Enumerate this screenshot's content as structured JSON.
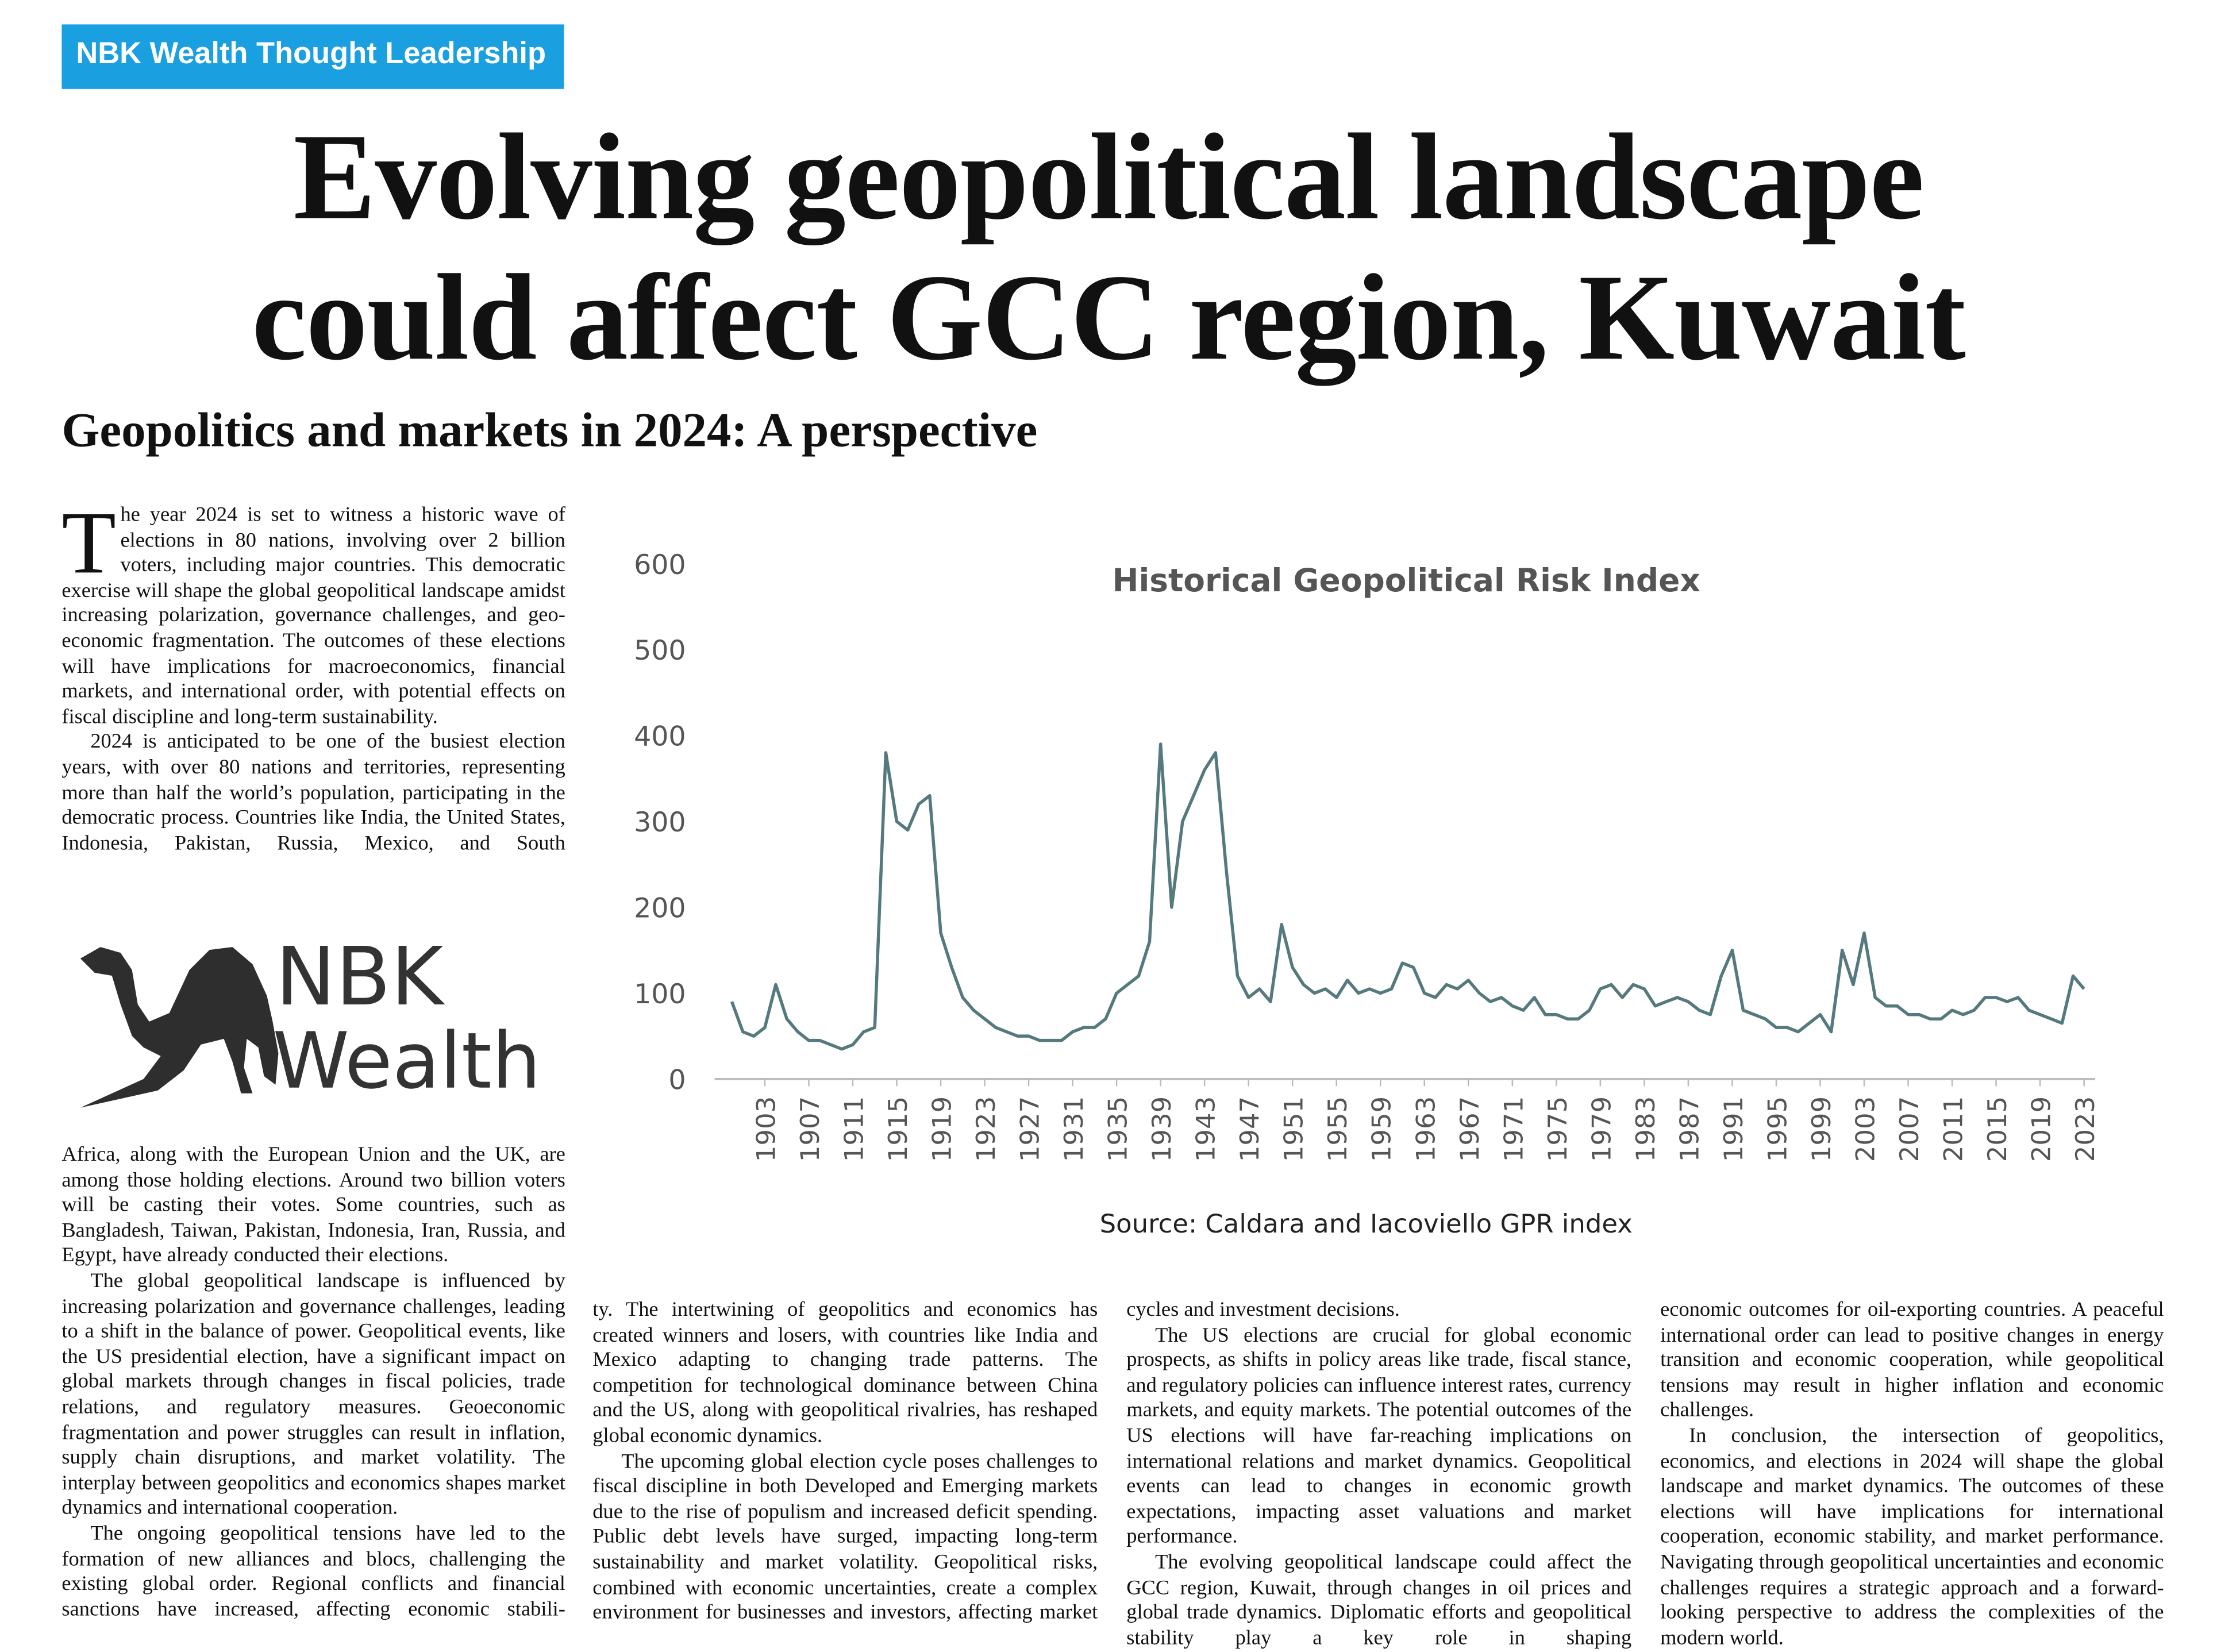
{
  "header": {
    "tag": "NBK Wealth Thought Leadership",
    "title_lines": [
      "Evolving geopolitical landscape",
      "could affect GCC region, Kuwait"
    ],
    "subtitle": "Geopolitics and markets in 2024: A perspective"
  },
  "logo": {
    "line1": "NBK",
    "line2": "Wealth"
  },
  "chart_data": {
    "type": "line",
    "title": "Historical Geopolitical Risk Index",
    "source": "Source: Caldara and Iacoviello GPR index",
    "x": [
      1900,
      1901,
      1902,
      1903,
      1904,
      1905,
      1906,
      1907,
      1908,
      1909,
      1910,
      1911,
      1912,
      1913,
      1914,
      1915,
      1916,
      1917,
      1918,
      1919,
      1920,
      1921,
      1922,
      1923,
      1924,
      1925,
      1926,
      1927,
      1928,
      1929,
      1930,
      1931,
      1932,
      1933,
      1934,
      1935,
      1936,
      1937,
      1938,
      1939,
      1940,
      1941,
      1942,
      1943,
      1944,
      1945,
      1946,
      1947,
      1948,
      1949,
      1950,
      1951,
      1952,
      1953,
      1954,
      1955,
      1956,
      1957,
      1958,
      1959,
      1960,
      1961,
      1962,
      1963,
      1964,
      1965,
      1966,
      1967,
      1968,
      1969,
      1970,
      1971,
      1972,
      1973,
      1974,
      1975,
      1976,
      1977,
      1978,
      1979,
      1980,
      1981,
      1982,
      1983,
      1984,
      1985,
      1986,
      1987,
      1988,
      1989,
      1990,
      1991,
      1992,
      1993,
      1994,
      1995,
      1996,
      1997,
      1998,
      1999,
      2000,
      2001,
      2002,
      2003,
      2004,
      2005,
      2006,
      2007,
      2008,
      2009,
      2010,
      2011,
      2012,
      2013,
      2014,
      2015,
      2016,
      2017,
      2018,
      2019,
      2020,
      2021,
      2022,
      2023
    ],
    "values": [
      90,
      55,
      50,
      60,
      110,
      70,
      55,
      45,
      45,
      40,
      35,
      40,
      55,
      60,
      380,
      300,
      290,
      320,
      330,
      170,
      130,
      95,
      80,
      70,
      60,
      55,
      50,
      50,
      45,
      45,
      45,
      55,
      60,
      60,
      70,
      100,
      110,
      120,
      160,
      390,
      200,
      300,
      330,
      360,
      380,
      240,
      120,
      95,
      105,
      90,
      180,
      130,
      110,
      100,
      105,
      95,
      115,
      100,
      105,
      100,
      105,
      135,
      130,
      100,
      95,
      110,
      105,
      115,
      100,
      90,
      95,
      85,
      80,
      95,
      75,
      75,
      70,
      70,
      80,
      105,
      110,
      95,
      110,
      105,
      85,
      90,
      95,
      90,
      80,
      75,
      120,
      150,
      80,
      75,
      70,
      60,
      60,
      55,
      65,
      75,
      55,
      150,
      110,
      170,
      95,
      85,
      85,
      75,
      75,
      70,
      70,
      80,
      75,
      80,
      95,
      95,
      90,
      95,
      80,
      75,
      70,
      65,
      120,
      105
    ],
    "color": "#557a7e",
    "xlim": [
      1900,
      2024
    ],
    "xticks": [
      1903,
      1907,
      1911,
      1915,
      1919,
      1923,
      1927,
      1931,
      1935,
      1939,
      1943,
      1947,
      1951,
      1955,
      1959,
      1963,
      1967,
      1971,
      1975,
      1979,
      1983,
      1987,
      1991,
      1995,
      1999,
      2003,
      2007,
      2011,
      2015,
      2019,
      2023
    ],
    "ylim": [
      0,
      600
    ],
    "yticks": [
      0,
      100,
      200,
      300,
      400,
      500,
      600
    ],
    "grid": false
  },
  "article": {
    "drop_cap": "T",
    "columns": [
      {
        "blocks": [
          [
            "he year 2024 is set to witness a historic wave of elections in 80 nations, involving over 2 billion voters, including major countries. This democratic exercise will shape the global geopolitical landscape amidst increasing polarization, governance challenges, and geo-economic fragmentation. The outcomes of these elections will have implications for macroeconomics, financial markets, and international order, with potential effects on fiscal discipline and long-term sustainability.",
            "2024 is anticipated to be one of the busiest election years, with over 80 nations and territories, representing more than half the world’s population, participating in the democratic process. Countries like India, the United States, Indonesia, Pakistan, Russia, Mexico, and South"
          ],
          [
            "Africa, along with the European Union and the UK, are among those holding elections. Around two billion voters will be casting their votes. Some countries, such as Bangladesh, Taiwan, Pakistan, Indonesia, Iran, Russia, and Egypt, have already conducted their elections.",
            "The global geopolitical landscape is influenced by increasing polarization and governance challenges, leading to a shift in the balance of power. Geopolitical events, like the US presidential election, have a significant impact on global markets through changes in fiscal policies, trade relations, and regulatory measures. Geoeconomic fragmentation and power struggles can result in inflation, supply chain disruptions, and market volatility. The interplay between geopolitics and economics shapes market dynamics and international cooperation.",
            "The ongoing geopolitical tensions have led to the formation of new alliances and blocs, challenging the existing global order. Regional conflicts and financial sanctions have increased, affecting economic stabili-"
          ]
        ]
      },
      {
        "blocks": [
          [
            "ty. The intertwining of geopolitics and economics has created winners and losers, with countries like India and Mexico adapting to changing trade patterns. The competition for technological dominance between China and the US, along with geopolitical rivalries, has reshaped global economic dynamics.",
            "The upcoming global election cycle poses challenges to fiscal discipline in both Developed and Emerging markets due to the rise of populism and increased deficit spending. Public debt levels have surged, impacting long-term sustainability and market volatility. Geopolitical risks, combined with economic uncertainties, create a complex environment for businesses and investors, affecting market"
          ]
        ]
      },
      {
        "blocks": [
          [
            "cycles and investment decisions.",
            "The US elections are crucial for global economic prospects, as shifts in policy areas like trade, fiscal stance, and regulatory policies can influence interest rates, currency markets, and equity markets. The potential outcomes of the US elections will have far-reaching implications on international relations and market dynamics. Geopolitical events can lead to changes in economic growth expectations, impacting asset valuations and market performance.",
            "The evolving geopolitical landscape could affect the GCC region, Kuwait, through changes in oil prices and global trade dynamics. Diplomatic efforts and geopolitical stability play a key role in shaping"
          ]
        ]
      },
      {
        "blocks": [
          [
            "economic outcomes for oil-exporting countries. A peaceful international order can lead to positive changes in energy transition and economic cooperation, while geopolitical tensions may result in higher inflation and economic challenges.",
            "In conclusion, the intersection of geopolitics, economics, and elections in 2024 will shape the global landscape and market dynamics. The outcomes of these elections will have implications for international cooperation, economic stability, and market performance. Navigating through geopolitical uncertainties and economic challenges requires a strategic approach and a forward-looking perspective to address the complexities of the modern world."
          ]
        ]
      }
    ]
  }
}
